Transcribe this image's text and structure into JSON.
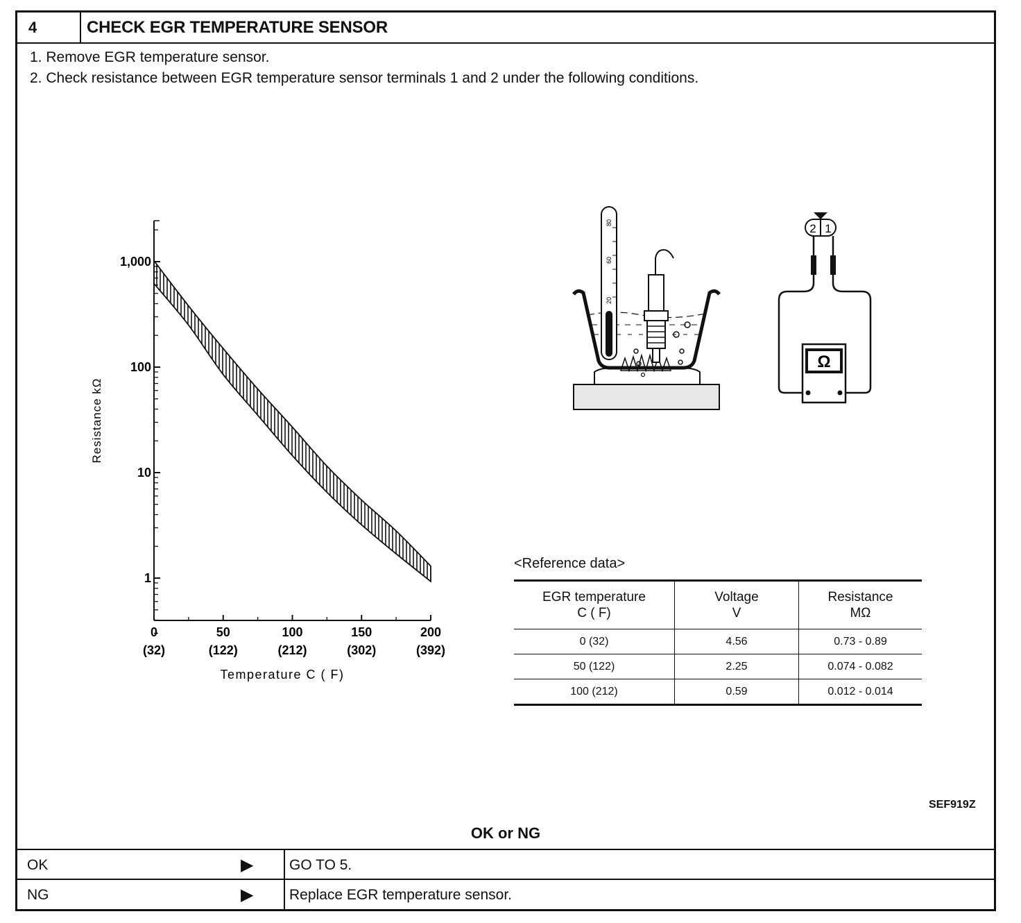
{
  "header": {
    "step_number": "4",
    "title": "CHECK EGR TEMPERATURE SENSOR"
  },
  "instructions": [
    "1.  Remove EGR temperature sensor.",
    "2.  Check resistance between EGR temperature sensor terminals 1 and 2 under the following conditions."
  ],
  "chart_data": {
    "type": "area",
    "x_scale": "linear",
    "y_scale": "log",
    "xlim": [
      0,
      200
    ],
    "ylim": [
      0.3,
      2500
    ],
    "xlabel": "Temperature C ( F)",
    "ylabel": "Resistance kΩ",
    "x_ticks": [
      {
        "c": "0",
        "f": "(32)"
      },
      {
        "c": "50",
        "f": "(122)"
      },
      {
        "c": "100",
        "f": "(212)"
      },
      {
        "c": "150",
        "f": "(302)"
      },
      {
        "c": "200",
        "f": "(392)"
      }
    ],
    "y_ticks": [
      "1,000",
      "100",
      "10",
      "1"
    ],
    "band": {
      "x": [
        0,
        25,
        50,
        75,
        100,
        125,
        150,
        175,
        200
      ],
      "upper": [
        1020,
        380,
        150,
        62,
        27,
        11.5,
        5.5,
        2.8,
        1.3
      ],
      "lower": [
        620,
        250,
        85,
        35,
        14.5,
        6.5,
        3.2,
        1.7,
        0.93
      ]
    }
  },
  "diagram_labels": {
    "connector_terminals": [
      "2",
      "1"
    ],
    "meter_symbol": "Ω",
    "thermometer_marks": [
      "80",
      "60",
      "20"
    ]
  },
  "reference": {
    "caption": "<Reference data>",
    "headers": [
      {
        "line1": "EGR temperature",
        "line2": "C ( F)"
      },
      {
        "line1": "Voltage",
        "line2": "V"
      },
      {
        "line1": "Resistance",
        "line2": "MΩ"
      }
    ],
    "rows": [
      {
        "temp": "0 (32)",
        "voltage": "4.56",
        "resistance": "0.73 - 0.89"
      },
      {
        "temp": "50 (122)",
        "voltage": "2.25",
        "resistance": "0.074 - 0.082"
      },
      {
        "temp": "100 (212)",
        "voltage": "0.59",
        "resistance": "0.012 - 0.014"
      }
    ]
  },
  "figure_code": "SEF919Z",
  "result": {
    "title": "OK or NG",
    "rows": [
      {
        "label": "OK",
        "arrow": "▶",
        "action": "GO TO 5."
      },
      {
        "label": "NG",
        "arrow": "▶",
        "action": "Replace EGR temperature sensor."
      }
    ]
  }
}
